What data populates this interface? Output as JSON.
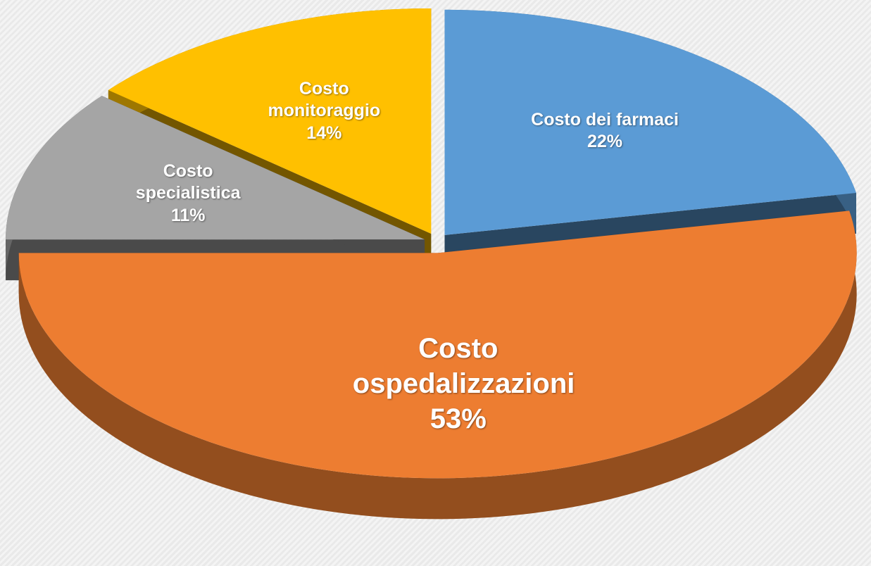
{
  "chart_data": {
    "type": "pie",
    "categories": [
      "Costo dei farmaci",
      "Costo ospedalizzazioni",
      "Costo specialistica",
      "Costo monitoraggio"
    ],
    "values": [
      22,
      53,
      11,
      14
    ],
    "value_labels": [
      "22%",
      "53%",
      "11%",
      "14%"
    ],
    "colors": [
      "#5b9bd5",
      "#ed7d31",
      "#a5a5a5",
      "#ffc000"
    ],
    "start_angle": 0,
    "direction": "clockwise",
    "three_d": true
  }
}
